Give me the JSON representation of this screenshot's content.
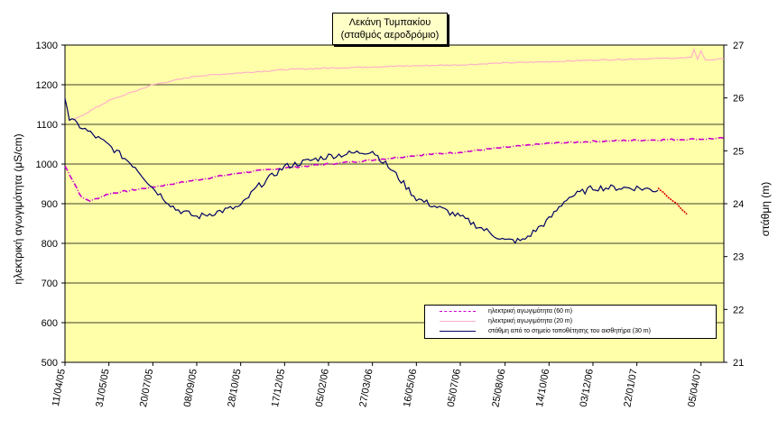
{
  "chart_data": {
    "type": "line",
    "title": [
      "Λεκάνη Τυμπακίου",
      "(σταθμός αεροδρόμιο)"
    ],
    "x_ticks": [
      "11/04/05",
      "31/05/05",
      "20/07/05",
      "08/09/05",
      "28/10/05",
      "17/12/05",
      "05/02/06",
      "27/03/06",
      "16/05/06",
      "05/07/06",
      "25/08/06",
      "14/10/06",
      "03/12/06",
      "22/01/07",
      "05/04/07"
    ],
    "y_left": {
      "label": "ηλεκτρική αγωγιμότητα (μS/cm)",
      "lim": [
        500,
        1300
      ],
      "ticks": [
        500,
        600,
        700,
        800,
        900,
        1000,
        1100,
        1200,
        1300
      ]
    },
    "y_right": {
      "label": "στάθμη (m)",
      "lim": [
        21,
        27
      ],
      "ticks": [
        21,
        22,
        23,
        24,
        25,
        26,
        27
      ]
    },
    "grid": true,
    "background": "#ffffaa",
    "legend_position": "bottom-right",
    "series": [
      {
        "name": "ηλεκτρική αγωγιμότητα (60 m)",
        "axis": "left",
        "color": "#cc00cc",
        "style": "dash-dot",
        "points": [
          [
            "11/04/05",
            995
          ],
          [
            "22/04/05",
            950
          ],
          [
            "30/04/05",
            915
          ],
          [
            "10/05/05",
            907
          ],
          [
            "31/05/05",
            925
          ],
          [
            "20/07/05",
            942
          ],
          [
            "08/09/05",
            960
          ],
          [
            "28/10/05",
            978
          ],
          [
            "17/12/05",
            990
          ],
          [
            "05/02/06",
            1000
          ],
          [
            "27/03/06",
            1010
          ],
          [
            "16/05/06",
            1022
          ],
          [
            "05/07/06",
            1030
          ],
          [
            "25/08/06",
            1042
          ],
          [
            "14/10/06",
            1052
          ],
          [
            "03/12/06",
            1057
          ],
          [
            "22/01/07",
            1060
          ],
          [
            "05/04/07",
            1063
          ],
          [
            "01/05/07",
            1065
          ]
        ]
      },
      {
        "name": "ηλεκτρική αγωγιμότητα (20 m)",
        "axis": "left",
        "color": "#ffb0c8",
        "style": "solid",
        "points": [
          [
            "20/04/05",
            1110
          ],
          [
            "31/05/05",
            1160
          ],
          [
            "20/07/05",
            1200
          ],
          [
            "08/09/05",
            1222
          ],
          [
            "28/10/05",
            1230
          ],
          [
            "17/12/05",
            1238
          ],
          [
            "05/02/06",
            1242
          ],
          [
            "27/03/06",
            1245
          ],
          [
            "16/05/06",
            1248
          ],
          [
            "05/07/06",
            1250
          ],
          [
            "25/08/06",
            1255
          ],
          [
            "14/10/06",
            1258
          ],
          [
            "03/12/06",
            1262
          ],
          [
            "22/01/07",
            1265
          ],
          [
            "25/03/07",
            1268
          ],
          [
            "28/03/07",
            1290
          ],
          [
            "01/04/07",
            1265
          ],
          [
            "05/04/07",
            1285
          ],
          [
            "10/04/07",
            1262
          ],
          [
            "01/05/07",
            1265
          ]
        ]
      },
      {
        "name": "στάθμη από το σημείο τοποθέτησης του αισθητήρα (30 m)",
        "axis": "right",
        "color": "#000066",
        "style": "solid",
        "points": [
          [
            "11/04/05",
            26.05
          ],
          [
            "16/04/05",
            25.6
          ],
          [
            "25/04/05",
            25.5
          ],
          [
            "31/05/05",
            25.1
          ],
          [
            "30/06/05",
            24.7
          ],
          [
            "20/07/05",
            24.3
          ],
          [
            "15/08/05",
            23.9
          ],
          [
            "08/09/05",
            23.75
          ],
          [
            "28/10/05",
            23.95
          ],
          [
            "15/11/05",
            24.3
          ],
          [
            "17/12/05",
            24.7
          ],
          [
            "05/02/06",
            24.9
          ],
          [
            "27/03/06",
            25.0
          ],
          [
            "20/04/06",
            24.6
          ],
          [
            "16/05/06",
            24.1
          ],
          [
            "05/07/06",
            23.75
          ],
          [
            "25/08/06",
            23.3
          ],
          [
            "14/09/06",
            23.3
          ],
          [
            "14/10/06",
            23.7
          ],
          [
            "03/11/06",
            24.1
          ],
          [
            "03/12/06",
            24.3
          ],
          [
            "22/01/07",
            24.3
          ],
          [
            "15/02/07",
            24.25
          ]
        ]
      },
      {
        "name": "",
        "axis": "right",
        "color": "#dd0000",
        "style": "dotted",
        "points": [
          [
            "15/02/07",
            24.3
          ],
          [
            "08/03/07",
            24.0
          ],
          [
            "20/03/07",
            23.8
          ]
        ]
      }
    ]
  }
}
